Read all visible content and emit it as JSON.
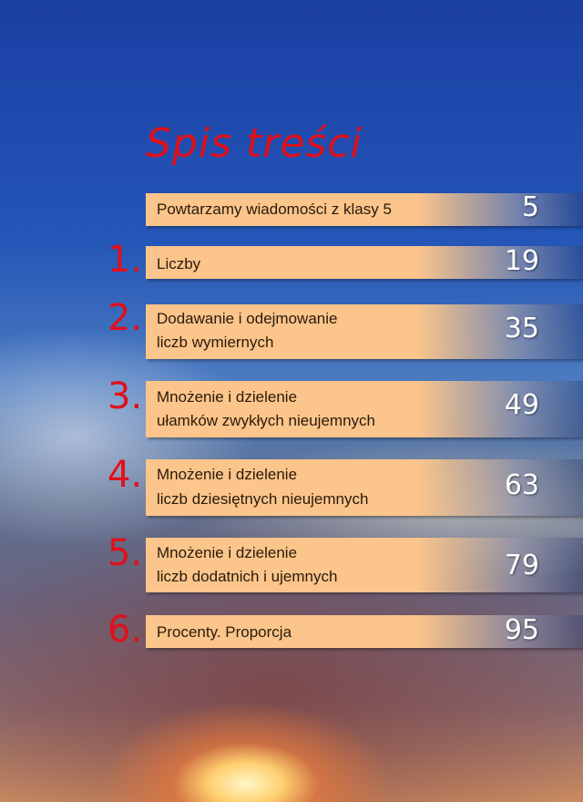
{
  "title": "Spis treści",
  "entries": [
    {
      "number": "",
      "lines": [
        "Powtarzamy wiadomości z klasy 5"
      ],
      "page": "5"
    },
    {
      "number": "1.",
      "lines": [
        "Liczby"
      ],
      "page": "19"
    },
    {
      "number": "2.",
      "lines": [
        "Dodawanie i odejmowanie",
        "liczb wymiernych"
      ],
      "page": "35"
    },
    {
      "number": "3.",
      "lines": [
        "Mnożenie i dzielenie",
        "ułamków zwykłych nieujemnych"
      ],
      "page": "49"
    },
    {
      "number": "4.",
      "lines": [
        "Mnożenie i dzielenie",
        "liczb dziesiętnych nieujemnych"
      ],
      "page": "63"
    },
    {
      "number": "5.",
      "lines": [
        "Mnożenie i dzielenie",
        "liczb dodatnich i ujemnych"
      ],
      "page": "79"
    },
    {
      "number": "6.",
      "lines": [
        "Procenty. Proporcja"
      ],
      "page": "95"
    }
  ],
  "colors": {
    "title": "#e0101a",
    "bar": "#fbc58b",
    "page_number": "#ffffff"
  }
}
